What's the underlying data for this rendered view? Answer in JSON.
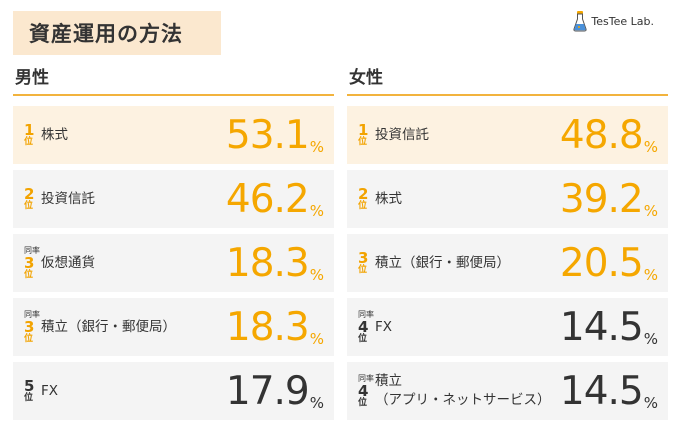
{
  "title": "資産運用の方法",
  "brand": {
    "name": "TesTee Lab.",
    "logo_icon": "tube-icon"
  },
  "colors": {
    "accent": "#f5a700",
    "title_bg": "#fbe8cf",
    "first_row_bg": "#fdf2e1",
    "row_bg": "#f4f4f4"
  },
  "rank_unit": "位",
  "tie_label": "同率",
  "percent_sign": "%",
  "male": {
    "header": "男性",
    "rows": [
      {
        "rank": "1",
        "tie": "",
        "label_lines": [
          "株式"
        ],
        "value": "53.1",
        "highlight": true
      },
      {
        "rank": "2",
        "tie": "",
        "label_lines": [
          "投資信託"
        ],
        "value": "46.2",
        "highlight": true
      },
      {
        "rank": "3",
        "tie": "同率",
        "label_lines": [
          "仮想通貨"
        ],
        "value": "18.3",
        "highlight": true
      },
      {
        "rank": "3",
        "tie": "同率",
        "label_lines": [
          "積立（銀行・郵便局）"
        ],
        "value": "18.3",
        "highlight": true
      },
      {
        "rank": "5",
        "tie": "",
        "label_lines": [
          "FX"
        ],
        "value": "17.9",
        "highlight": false
      }
    ]
  },
  "female": {
    "header": "女性",
    "rows": [
      {
        "rank": "1",
        "tie": "",
        "label_lines": [
          "投資信託"
        ],
        "value": "48.8",
        "highlight": true
      },
      {
        "rank": "2",
        "tie": "",
        "label_lines": [
          "株式"
        ],
        "value": "39.2",
        "highlight": true
      },
      {
        "rank": "3",
        "tie": "",
        "label_lines": [
          "積立（銀行・郵便局）"
        ],
        "value": "20.5",
        "highlight": true
      },
      {
        "rank": "4",
        "tie": "同率",
        "label_lines": [
          "FX"
        ],
        "value": "14.5",
        "highlight": false
      },
      {
        "rank": "4",
        "tie": "同率",
        "label_lines": [
          "積立",
          "（アプリ・ネットサービス）"
        ],
        "value": "14.5",
        "highlight": false
      }
    ]
  }
}
